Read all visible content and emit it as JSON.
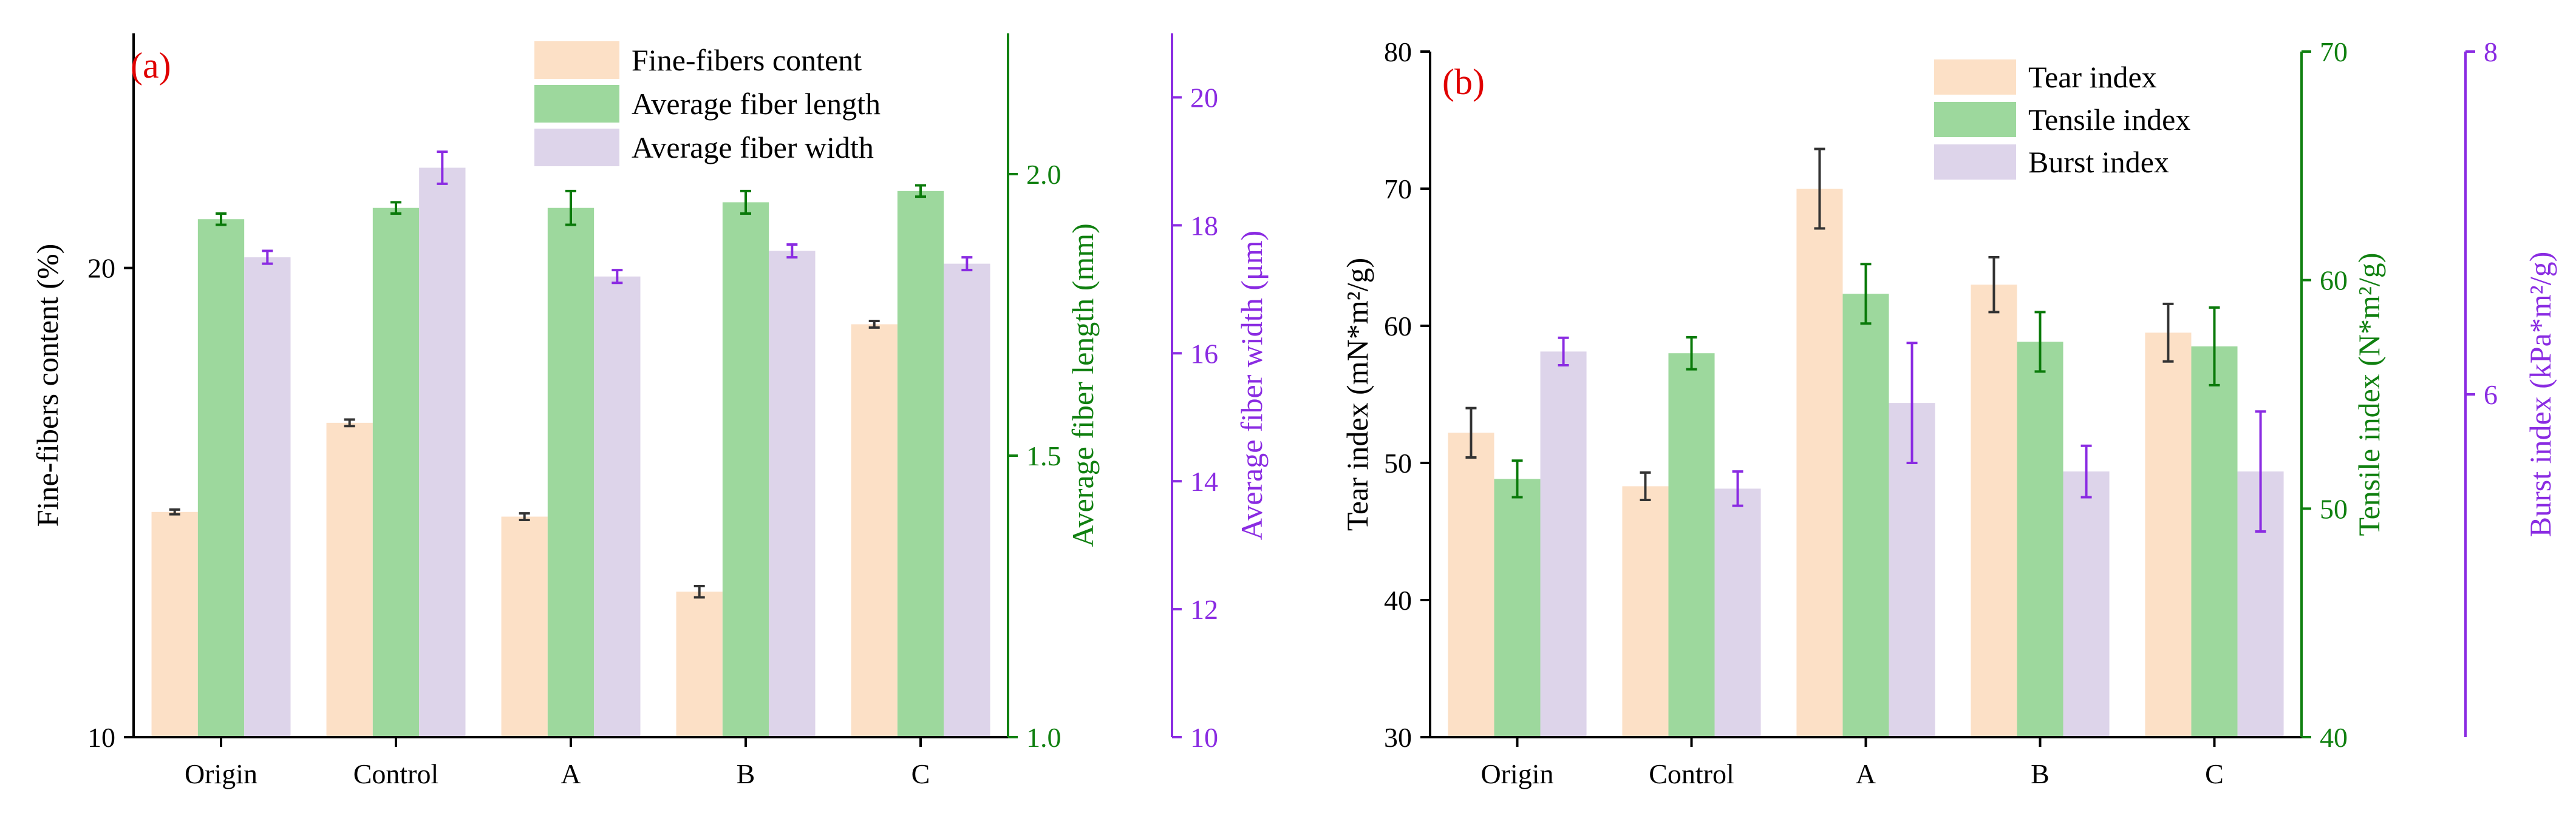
{
  "colors": {
    "fine": "#fce0c6",
    "fiber_length": "#9dd89d",
    "fiber_width": "#ddd4ea",
    "axis_black": "#000000",
    "axis_green": "#108010",
    "axis_purple": "#8a2be2",
    "panel_label": "#e00000",
    "err_fine": "#333333",
    "err_green": "#0a7a0a",
    "err_purple": "#8a2be2"
  },
  "chart_data": [
    {
      "type": "bar",
      "panel_label": "(a)",
      "categories": [
        "Origin",
        "Control",
        "A",
        "B",
        "C"
      ],
      "legend_position": "top-right",
      "axes": [
        {
          "id": "left",
          "label": "Fine-fibers content (%)",
          "lim": [
            10,
            25
          ],
          "ticks": [
            10,
            20
          ],
          "color_key": "axis_black"
        },
        {
          "id": "right1",
          "label": "Average fiber length (mm)",
          "lim": [
            1.0,
            2.25
          ],
          "ticks": [
            1.0,
            1.5,
            2.0
          ],
          "color_key": "axis_green"
        },
        {
          "id": "right2",
          "label": "Average fiber width (μm)",
          "lim": [
            10,
            21
          ],
          "ticks": [
            10,
            12,
            14,
            16,
            18,
            20
          ],
          "color_key": "axis_purple"
        }
      ],
      "series": [
        {
          "name": "Fine-fibers content",
          "axis": "left",
          "color_key": "fine",
          "err_color_key": "err_fine",
          "values": [
            14.8,
            16.7,
            14.7,
            13.1,
            18.8
          ],
          "errors": [
            0.05,
            0.07,
            0.07,
            0.12,
            0.07
          ]
        },
        {
          "name": "Average fiber length",
          "axis": "right1",
          "color_key": "fiber_length",
          "err_color_key": "err_green",
          "values": [
            1.92,
            1.94,
            1.94,
            1.95,
            1.97
          ],
          "errors": [
            0.01,
            0.01,
            0.03,
            0.02,
            0.01
          ]
        },
        {
          "name": "Average fiber width",
          "axis": "right2",
          "color_key": "fiber_width",
          "err_color_key": "err_purple",
          "values": [
            17.5,
            18.9,
            17.2,
            17.6,
            17.4
          ],
          "errors": [
            0.1,
            0.25,
            0.1,
            0.1,
            0.1
          ]
        }
      ]
    },
    {
      "type": "bar",
      "panel_label": "(b)",
      "categories": [
        "Origin",
        "Control",
        "A",
        "B",
        "C"
      ],
      "legend_position": "top-right",
      "axes": [
        {
          "id": "left",
          "label": "Tear index (mN*m²/g)",
          "lim": [
            30,
            80
          ],
          "ticks": [
            30,
            40,
            50,
            60,
            70,
            80
          ],
          "color_key": "axis_black"
        },
        {
          "id": "right1",
          "label": "Tensile index (N*m²/g)",
          "lim": [
            40,
            70
          ],
          "ticks": [
            40,
            50,
            60,
            70
          ],
          "color_key": "axis_green"
        },
        {
          "id": "right2",
          "label": "Burst index (kPa*m²/g)",
          "lim": [
            4,
            8
          ],
          "ticks": [
            6,
            8
          ],
          "color_key": "axis_purple"
        }
      ],
      "series": [
        {
          "name": "Tear index",
          "axis": "left",
          "color_key": "fine",
          "err_color_key": "err_fine",
          "values": [
            52.2,
            48.3,
            70.0,
            63.0,
            59.5
          ],
          "errors": [
            1.8,
            1.0,
            2.9,
            2.0,
            2.1
          ]
        },
        {
          "name": "Tensile index",
          "axis": "right1",
          "color_key": "fiber_length",
          "err_color_key": "err_green",
          "values": [
            51.3,
            56.8,
            59.4,
            57.3,
            57.1
          ],
          "errors": [
            0.8,
            0.7,
            1.3,
            1.3,
            1.7
          ]
        },
        {
          "name": "Burst index",
          "axis": "right2",
          "color_key": "fiber_width",
          "err_color_key": "err_purple",
          "values": [
            6.25,
            5.45,
            5.95,
            5.55,
            5.55
          ],
          "errors": [
            0.08,
            0.1,
            0.35,
            0.15,
            0.35
          ]
        }
      ]
    }
  ]
}
